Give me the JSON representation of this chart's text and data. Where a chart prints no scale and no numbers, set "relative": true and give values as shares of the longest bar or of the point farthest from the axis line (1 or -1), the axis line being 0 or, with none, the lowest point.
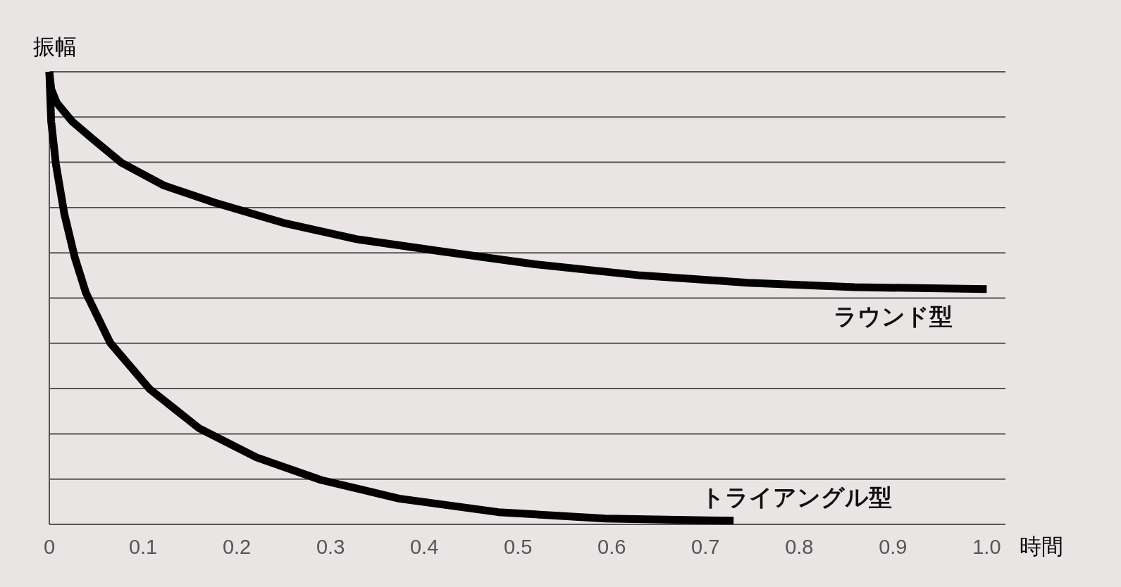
{
  "chart_data": {
    "type": "line",
    "relative": true,
    "xlabel": "時間",
    "ylabel": "振幅",
    "xlim": [
      0,
      1.02
    ],
    "xticks": [
      0,
      0.1,
      0.2,
      0.3,
      0.4,
      0.5,
      0.6,
      0.7,
      0.8,
      0.9,
      {
        "value": 1,
        "label": "1.0"
      }
    ],
    "grid": "y",
    "marker": "none",
    "line_style": "solid",
    "series": [
      {
        "name": "ラウンド型",
        "color": "#000000",
        "x": [
          0,
          0.002,
          0.008,
          0.024,
          0.046,
          0.077,
          0.122,
          0.176,
          0.252,
          0.328,
          0.419,
          0.517,
          0.631,
          0.745,
          0.859,
          1.0
        ],
        "values": [
          1,
          0.962,
          0.931,
          0.891,
          0.852,
          0.799,
          0.749,
          0.711,
          0.665,
          0.63,
          0.603,
          0.575,
          0.55,
          0.534,
          0.524,
          0.52
        ]
      },
      {
        "name": "トライアングル型",
        "color": "#000000",
        "x": [
          0,
          0.002,
          0.007,
          0.016,
          0.027,
          0.039,
          0.065,
          0.107,
          0.16,
          0.221,
          0.29,
          0.373,
          0.479,
          0.593,
          0.73
        ],
        "values": [
          1,
          0.89,
          0.796,
          0.686,
          0.591,
          0.512,
          0.401,
          0.299,
          0.212,
          0.148,
          0.098,
          0.057,
          0.027,
          0.013,
          0.008
        ]
      }
    ]
  }
}
